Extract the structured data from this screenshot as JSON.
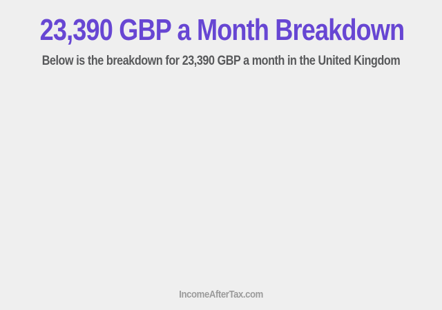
{
  "page": {
    "title": "23,390 GBP a Month Breakdown",
    "subtitle": "Below is the breakdown for 23,390 GBP a month in the United Kingdom"
  },
  "footer": {
    "site_label": "IncomeAfterTax.com"
  },
  "colors": {
    "background": "#efefef",
    "title": "#6746d3",
    "subtitle": "#58595b",
    "footer": "#9b9b9b"
  }
}
